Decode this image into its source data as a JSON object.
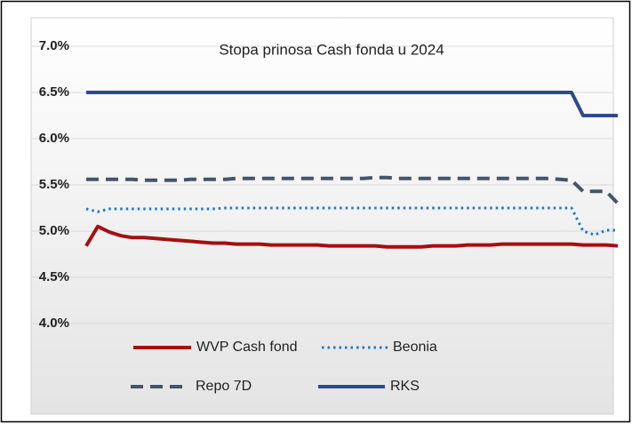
{
  "chart_data": {
    "type": "line",
    "title": "Stopa prinosa Cash fonda u 2024",
    "categories": [
      null,
      null,
      null,
      null,
      null,
      null,
      null,
      null,
      null,
      null,
      null,
      null,
      null,
      null,
      null,
      null,
      null,
      null,
      null,
      null,
      null,
      null,
      null,
      null,
      null,
      null,
      null,
      null,
      null,
      null,
      null,
      null,
      null,
      null,
      null,
      null,
      null,
      null,
      null,
      null,
      null,
      null,
      null,
      null,
      null,
      null,
      null
    ],
    "series": [
      {
        "name": "WVP Cash fond",
        "color": "#a50f0f",
        "style": "solid",
        "values": [
          4.84,
          5.05,
          4.99,
          4.95,
          4.93,
          4.93,
          4.92,
          4.91,
          4.9,
          4.89,
          4.88,
          4.87,
          4.87,
          4.86,
          4.86,
          4.86,
          4.85,
          4.85,
          4.85,
          4.85,
          4.85,
          4.84,
          4.84,
          4.84,
          4.84,
          4.84,
          4.83,
          4.83,
          4.83,
          4.83,
          4.84,
          4.84,
          4.84,
          4.85,
          4.85,
          4.85,
          4.86,
          4.86,
          4.86,
          4.86,
          4.86,
          4.86,
          4.86,
          4.85,
          4.85,
          4.85,
          4.84
        ]
      },
      {
        "name": "Beonia",
        "color": "#1f78c8",
        "style": "dotted",
        "values": [
          5.24,
          5.21,
          5.24,
          5.24,
          5.24,
          5.24,
          5.24,
          5.24,
          5.24,
          5.24,
          5.24,
          5.24,
          5.25,
          5.25,
          5.25,
          5.25,
          5.25,
          5.25,
          5.25,
          5.25,
          5.25,
          5.25,
          5.25,
          5.25,
          5.25,
          5.25,
          5.25,
          5.25,
          5.25,
          5.25,
          5.25,
          5.25,
          5.25,
          5.25,
          5.25,
          5.25,
          5.25,
          5.25,
          5.25,
          5.25,
          5.25,
          5.25,
          5.25,
          5.0,
          4.96,
          5.01,
          5.01
        ]
      },
      {
        "name": "Repo 7D",
        "color": "#44546a",
        "style": "dashed",
        "values": [
          5.56,
          5.56,
          5.56,
          5.56,
          5.56,
          5.55,
          5.55,
          5.55,
          5.55,
          5.56,
          5.56,
          5.56,
          5.56,
          5.57,
          5.57,
          5.57,
          5.57,
          5.57,
          5.57,
          5.57,
          5.57,
          5.57,
          5.57,
          5.57,
          5.57,
          5.58,
          5.58,
          5.57,
          5.57,
          5.57,
          5.57,
          5.57,
          5.57,
          5.57,
          5.57,
          5.57,
          5.57,
          5.57,
          5.57,
          5.57,
          5.57,
          5.56,
          5.55,
          5.43,
          5.43,
          5.43,
          5.3
        ]
      },
      {
        "name": "RKS",
        "color": "#2e4a8c",
        "style": "solid",
        "values": [
          6.5,
          6.5,
          6.5,
          6.5,
          6.5,
          6.5,
          6.5,
          6.5,
          6.5,
          6.5,
          6.5,
          6.5,
          6.5,
          6.5,
          6.5,
          6.5,
          6.5,
          6.5,
          6.5,
          6.5,
          6.5,
          6.5,
          6.5,
          6.5,
          6.5,
          6.5,
          6.5,
          6.5,
          6.5,
          6.5,
          6.5,
          6.5,
          6.5,
          6.5,
          6.5,
          6.5,
          6.5,
          6.5,
          6.5,
          6.5,
          6.5,
          6.5,
          6.5,
          6.25,
          6.25,
          6.25,
          6.25
        ]
      }
    ],
    "ylim": [
      3.0,
      7.3
    ],
    "yticks": [
      {
        "value": 4,
        "label": "4.0%"
      },
      {
        "value": 4.5,
        "label": "4.5%"
      },
      {
        "value": 5,
        "label": "5.0%"
      },
      {
        "value": 5.5,
        "label": "5.5%"
      },
      {
        "value": 6,
        "label": "6.0%"
      },
      {
        "value": 6.5,
        "label": "6.5%"
      },
      {
        "value": 7,
        "label": "7.0%"
      }
    ],
    "grid": true,
    "legend": "bottom"
  }
}
